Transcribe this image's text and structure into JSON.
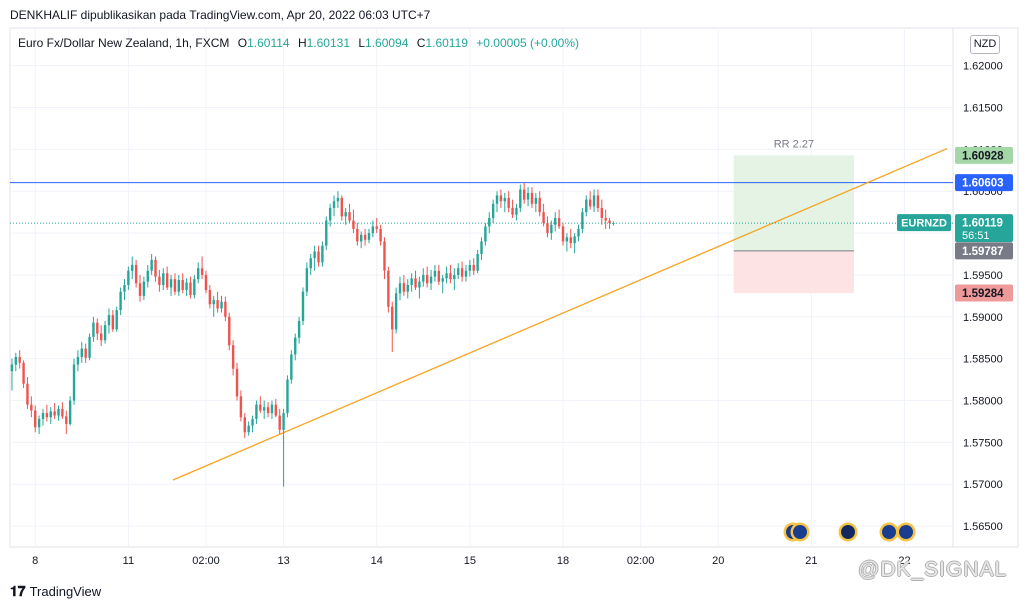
{
  "publication": "DENKHALIF dipublikasikan pada TradingView.com, Apr 20, 2022 06:03 UTC+7",
  "legend": {
    "symbol": "Euro Fx/Dollar New Zealand, 1h, FXCM",
    "o_label": "O",
    "o": "1.60114",
    "h_label": "H",
    "h": "1.60131",
    "l_label": "L",
    "l": "1.60094",
    "c_label": "C",
    "c": "1.60119",
    "change": "+0.00005 (+0.00%)"
  },
  "currency_button": "NZD",
  "footer_brand": "TradingView",
  "watermark": "@DK_SIGNAL",
  "colors": {
    "up": "#26a69a",
    "down": "#ef5350",
    "resistance": "#2962ff",
    "trendline": "#f7a21b",
    "profit_zone": "#e4f3e4",
    "loss_zone": "#fde3e3",
    "grid": "#f0f3fa"
  },
  "chart_data": {
    "type": "candlestick",
    "symbol": "EURNZD",
    "timeframe": "1h",
    "ylim": [
      1.5625,
      1.6245
    ],
    "y_ticks": [
      "1.62000",
      "1.61500",
      "1.61000",
      "1.60500",
      "1.60000",
      "1.59500",
      "1.59000",
      "1.58500",
      "1.58000",
      "1.57500",
      "1.57000",
      "1.56500"
    ],
    "x_ticks": [
      {
        "label": "8",
        "index": 6
      },
      {
        "label": "11",
        "index": 30
      },
      {
        "label": "02:00",
        "index": 50
      },
      {
        "label": "13",
        "index": 70
      },
      {
        "label": "14",
        "index": 94
      },
      {
        "label": "15",
        "index": 118
      },
      {
        "label": "18",
        "index": 142
      },
      {
        "label": "02:00",
        "index": 162
      },
      {
        "label": "20",
        "index": 182
      },
      {
        "label": "21",
        "index": 206
      },
      {
        "label": "22",
        "index": 230
      }
    ],
    "bar_count_span": 243,
    "candles": [
      [
        1.5835,
        1.585,
        1.5812,
        1.5843
      ],
      [
        1.5843,
        1.5857,
        1.5835,
        1.5852
      ],
      [
        1.5852,
        1.586,
        1.5838,
        1.5845
      ],
      [
        1.5845,
        1.5848,
        1.5815,
        1.582
      ],
      [
        1.582,
        1.5828,
        1.579,
        1.5795
      ],
      [
        1.5795,
        1.5805,
        1.578,
        1.5788
      ],
      [
        1.5788,
        1.5794,
        1.5762,
        1.5768
      ],
      [
        1.5768,
        1.5782,
        1.576,
        1.5778
      ],
      [
        1.5778,
        1.579,
        1.577,
        1.5785
      ],
      [
        1.5785,
        1.5795,
        1.5775,
        1.578
      ],
      [
        1.578,
        1.5792,
        1.5772,
        1.5787
      ],
      [
        1.5787,
        1.5797,
        1.5778,
        1.5782
      ],
      [
        1.5782,
        1.5794,
        1.5776,
        1.579
      ],
      [
        1.579,
        1.5798,
        1.5778,
        1.5781
      ],
      [
        1.5781,
        1.5788,
        1.576,
        1.5772
      ],
      [
        1.5772,
        1.5805,
        1.577,
        1.58
      ],
      [
        1.58,
        1.585,
        1.5795,
        1.5843
      ],
      [
        1.5843,
        1.586,
        1.5835,
        1.5852
      ],
      [
        1.5852,
        1.587,
        1.5845,
        1.5862
      ],
      [
        1.5862,
        1.5868,
        1.5845,
        1.5851
      ],
      [
        1.5851,
        1.588,
        1.5848,
        1.5876
      ],
      [
        1.5876,
        1.59,
        1.587,
        1.5893
      ],
      [
        1.5893,
        1.5898,
        1.5872,
        1.588
      ],
      [
        1.588,
        1.589,
        1.5865,
        1.5872
      ],
      [
        1.5872,
        1.5895,
        1.5868,
        1.589
      ],
      [
        1.589,
        1.591,
        1.588,
        1.5902
      ],
      [
        1.5902,
        1.5908,
        1.5882,
        1.5885
      ],
      [
        1.5885,
        1.5912,
        1.5882,
        1.5908
      ],
      [
        1.5908,
        1.5935,
        1.5902,
        1.593
      ],
      [
        1.593,
        1.5945,
        1.592,
        1.5938
      ],
      [
        1.5938,
        1.596,
        1.5932,
        1.5955
      ],
      [
        1.5955,
        1.5972,
        1.5945,
        1.5962
      ],
      [
        1.5962,
        1.5968,
        1.5935,
        1.594
      ],
      [
        1.594,
        1.595,
        1.5918,
        1.5925
      ],
      [
        1.5925,
        1.5948,
        1.592,
        1.5942
      ],
      [
        1.5942,
        1.5962,
        1.5935,
        1.5955
      ],
      [
        1.5955,
        1.5975,
        1.595,
        1.5968
      ],
      [
        1.5968,
        1.5972,
        1.5942,
        1.5948
      ],
      [
        1.5948,
        1.5956,
        1.593,
        1.5938
      ],
      [
        1.5938,
        1.5958,
        1.5932,
        1.5952
      ],
      [
        1.5952,
        1.596,
        1.5932,
        1.5935
      ],
      [
        1.5935,
        1.595,
        1.5925,
        1.5945
      ],
      [
        1.5945,
        1.5952,
        1.5926,
        1.593
      ],
      [
        1.593,
        1.595,
        1.5925,
        1.5944
      ],
      [
        1.5944,
        1.5952,
        1.5928,
        1.5932
      ],
      [
        1.5932,
        1.5946,
        1.5925,
        1.5941
      ],
      [
        1.5941,
        1.5948,
        1.5922,
        1.5926
      ],
      [
        1.5926,
        1.595,
        1.5922,
        1.5945
      ],
      [
        1.5945,
        1.5965,
        1.594,
        1.5958
      ],
      [
        1.5958,
        1.5972,
        1.5945,
        1.595
      ],
      [
        1.595,
        1.5955,
        1.5928,
        1.5932
      ],
      [
        1.5932,
        1.5938,
        1.591,
        1.5915
      ],
      [
        1.5915,
        1.5925,
        1.59,
        1.592
      ],
      [
        1.592,
        1.593,
        1.5905,
        1.591
      ],
      [
        1.591,
        1.5925,
        1.5905,
        1.5918
      ],
      [
        1.5918,
        1.5924,
        1.5895,
        1.59
      ],
      [
        1.59,
        1.5905,
        1.586,
        1.5866
      ],
      [
        1.5866,
        1.5872,
        1.583,
        1.5838
      ],
      [
        1.5838,
        1.5845,
        1.58,
        1.5805
      ],
      [
        1.5805,
        1.5812,
        1.5775,
        1.578
      ],
      [
        1.578,
        1.5785,
        1.5755,
        1.5762
      ],
      [
        1.5762,
        1.5775,
        1.5758,
        1.577
      ],
      [
        1.577,
        1.5782,
        1.5762,
        1.5778
      ],
      [
        1.5778,
        1.58,
        1.5772,
        1.5795
      ],
      [
        1.5795,
        1.5805,
        1.5785,
        1.5788
      ],
      [
        1.5788,
        1.58,
        1.5778,
        1.5792
      ],
      [
        1.5792,
        1.5798,
        1.578,
        1.5785
      ],
      [
        1.5785,
        1.58,
        1.5778,
        1.5795
      ],
      [
        1.5795,
        1.5802,
        1.578,
        1.5782
      ],
      [
        1.5782,
        1.579,
        1.576,
        1.5765
      ],
      [
        1.5765,
        1.579,
        1.5697,
        1.5785
      ],
      [
        1.5785,
        1.583,
        1.578,
        1.5825
      ],
      [
        1.5825,
        1.586,
        1.582,
        1.5855
      ],
      [
        1.5855,
        1.588,
        1.5848,
        1.5875
      ],
      [
        1.5875,
        1.59,
        1.5868,
        1.5895
      ],
      [
        1.5895,
        1.5935,
        1.589,
        1.593
      ],
      [
        1.593,
        1.5965,
        1.5925,
        1.5958
      ],
      [
        1.5958,
        1.5975,
        1.595,
        1.597
      ],
      [
        1.597,
        1.5985,
        1.5955,
        1.5978
      ],
      [
        1.5978,
        1.5985,
        1.596,
        1.5965
      ],
      [
        1.5965,
        1.599,
        1.596,
        1.5985
      ],
      [
        1.5985,
        1.602,
        1.598,
        1.6015
      ],
      [
        1.6015,
        1.6035,
        1.6008,
        1.603
      ],
      [
        1.603,
        1.6045,
        1.602,
        1.6038
      ],
      [
        1.6038,
        1.605,
        1.603,
        1.6042
      ],
      [
        1.6042,
        1.6045,
        1.6015,
        1.602
      ],
      [
        1.602,
        1.603,
        1.601,
        1.6025
      ],
      [
        1.6025,
        1.6035,
        1.6012,
        1.6015
      ],
      [
        1.6015,
        1.6028,
        1.6,
        1.6005
      ],
      [
        1.6005,
        1.6012,
        1.5985,
        1.599
      ],
      [
        1.599,
        1.6002,
        1.5982,
        1.5998
      ],
      [
        1.5998,
        1.6005,
        1.5985,
        1.5992
      ],
      [
        1.5992,
        1.6005,
        1.5988,
        1.6
      ],
      [
        1.6,
        1.6015,
        1.5995,
        1.6008
      ],
      [
        1.6008,
        1.6018,
        1.6,
        1.6005
      ],
      [
        1.6005,
        1.601,
        1.5985,
        1.599
      ],
      [
        1.599,
        1.5995,
        1.5945,
        1.5955
      ],
      [
        1.5955,
        1.596,
        1.5905,
        1.5912
      ],
      [
        1.5912,
        1.5918,
        1.5858,
        1.5885
      ],
      [
        1.5885,
        1.5935,
        1.588,
        1.5928
      ],
      [
        1.5928,
        1.5948,
        1.592,
        1.594
      ],
      [
        1.594,
        1.595,
        1.5925,
        1.593
      ],
      [
        1.593,
        1.5945,
        1.5922,
        1.5938
      ],
      [
        1.5938,
        1.5952,
        1.593,
        1.5946
      ],
      [
        1.5946,
        1.5955,
        1.5932,
        1.5935
      ],
      [
        1.5935,
        1.5948,
        1.5922,
        1.5942
      ],
      [
        1.5942,
        1.5958,
        1.5936,
        1.595
      ],
      [
        1.595,
        1.596,
        1.5935,
        1.594
      ],
      [
        1.594,
        1.5956,
        1.5932,
        1.5948
      ],
      [
        1.5948,
        1.5962,
        1.5942,
        1.5955
      ],
      [
        1.5955,
        1.5962,
        1.5938,
        1.5942
      ],
      [
        1.5942,
        1.595,
        1.5928,
        1.5946
      ],
      [
        1.5946,
        1.596,
        1.594,
        1.5952
      ],
      [
        1.5952,
        1.5962,
        1.594,
        1.5945
      ],
      [
        1.5945,
        1.5958,
        1.5932,
        1.595
      ],
      [
        1.595,
        1.5964,
        1.5945,
        1.5958
      ],
      [
        1.5958,
        1.5966,
        1.5942,
        1.5948
      ],
      [
        1.5948,
        1.5962,
        1.5942,
        1.5955
      ],
      [
        1.5955,
        1.5968,
        1.5948,
        1.5962
      ],
      [
        1.5962,
        1.597,
        1.595,
        1.5955
      ],
      [
        1.5955,
        1.598,
        1.5952,
        1.5975
      ],
      [
        1.5975,
        1.5995,
        1.5968,
        1.599
      ],
      [
        1.599,
        1.6012,
        1.5985,
        1.6008
      ],
      [
        1.6008,
        1.6025,
        1.6,
        1.6018
      ],
      [
        1.6018,
        1.604,
        1.6012,
        1.6035
      ],
      [
        1.6035,
        1.605,
        1.6025,
        1.6045
      ],
      [
        1.6045,
        1.6052,
        1.603,
        1.6038
      ],
      [
        1.6038,
        1.6048,
        1.6025,
        1.6042
      ],
      [
        1.6042,
        1.605,
        1.6025,
        1.603
      ],
      [
        1.603,
        1.604,
        1.6018,
        1.6022
      ],
      [
        1.6022,
        1.6035,
        1.6015,
        1.603
      ],
      [
        1.603,
        1.6058,
        1.6025,
        1.6052
      ],
      [
        1.6052,
        1.606,
        1.6035,
        1.604
      ],
      [
        1.604,
        1.6055,
        1.6032,
        1.6048
      ],
      [
        1.6048,
        1.6055,
        1.603,
        1.6035
      ],
      [
        1.6035,
        1.6048,
        1.6025,
        1.6042
      ],
      [
        1.6042,
        1.605,
        1.602,
        1.6025
      ],
      [
        1.6025,
        1.6035,
        1.6008,
        1.6012
      ],
      [
        1.6012,
        1.602,
        1.5995,
        1.6
      ],
      [
        1.6,
        1.6015,
        1.5992,
        1.601
      ],
      [
        1.601,
        1.6025,
        1.6002,
        1.6018
      ],
      [
        1.6018,
        1.6028,
        1.6005,
        1.6008
      ],
      [
        1.6008,
        1.6012,
        1.5985,
        1.599
      ],
      [
        1.599,
        1.6,
        1.5978,
        1.5995
      ],
      [
        1.5995,
        1.6005,
        1.5982,
        1.5988
      ],
      [
        1.5988,
        1.6,
        1.5976,
        1.5996
      ],
      [
        1.5996,
        1.601,
        1.599,
        1.6005
      ],
      [
        1.6005,
        1.603,
        1.6,
        1.6025
      ],
      [
        1.6025,
        1.6045,
        1.602,
        1.604
      ],
      [
        1.604,
        1.605,
        1.6028,
        1.6032
      ],
      [
        1.6032,
        1.6052,
        1.6025,
        1.6045
      ],
      [
        1.6045,
        1.6052,
        1.6025,
        1.603
      ],
      [
        1.603,
        1.604,
        1.601,
        1.6018
      ],
      [
        1.6018,
        1.6028,
        1.6005,
        1.6015
      ],
      [
        1.6015,
        1.6018,
        1.6005,
        1.6012
      ],
      [
        1.6012,
        1.6014,
        1.6009,
        1.6012
      ]
    ],
    "lines": [
      {
        "kind": "resistance",
        "price": 1.60603
      },
      {
        "kind": "trendline",
        "from": {
          "index": 41.5,
          "price": 1.5705
        },
        "to": {
          "index": 241,
          "price": 1.6101
        }
      },
      {
        "kind": "last-price",
        "price": 1.60119
      }
    ],
    "position": {
      "label": "RR 2.27",
      "entry": 1.59787,
      "target": 1.60928,
      "stop": 1.59284,
      "start_index": 186,
      "end_index": 217
    },
    "price_labels": [
      {
        "text": "1.60928",
        "price": 1.60928,
        "color": "#a5d6a7",
        "text_color": "#131722"
      },
      {
        "text": "1.60603",
        "price": 1.60603,
        "color": "#2962ff",
        "text_color": "#ffffff"
      },
      {
        "text": "1.60119",
        "price": 1.60119,
        "color": "#26a69a",
        "text_color": "#ffffff",
        "sub": "56:51",
        "tag": "EURNZD"
      },
      {
        "text": "1.59787",
        "price": 1.59787,
        "color": "#787b86",
        "text_color": "#ffffff"
      },
      {
        "text": "1.59284",
        "price": 1.59284,
        "color": "#ef9a9a",
        "text_color": "#131722"
      }
    ]
  }
}
